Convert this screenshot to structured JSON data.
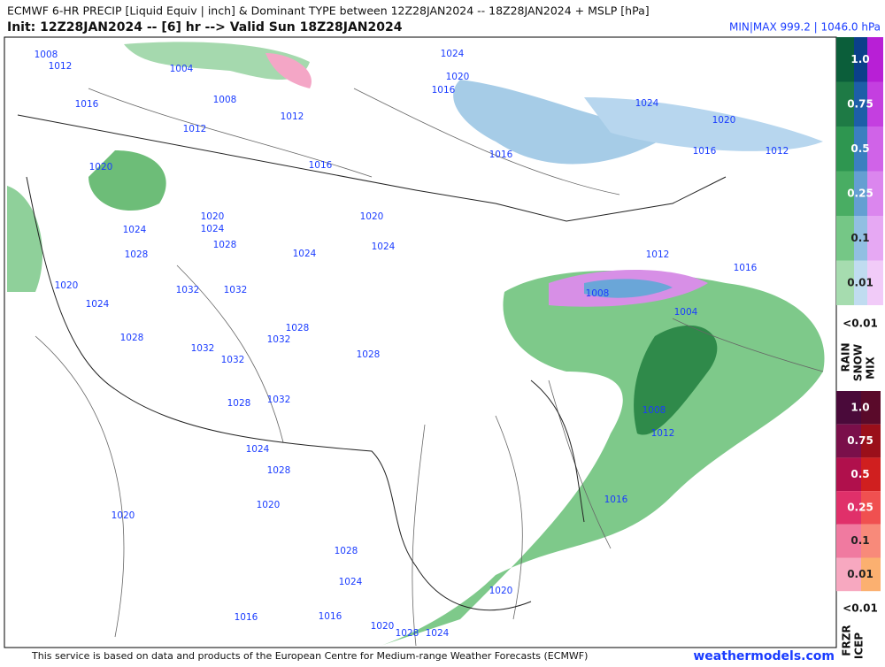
{
  "header": {
    "title": "ECMWF 6-HR PRECIP [Liquid Equiv | inch] & Dominant TYPE between 12Z28JAN2024 -- 18Z28JAN2024 + MSLP [hPa]",
    "subtitle": "Init: 12Z28JAN2024 -- [6] hr --> Valid Sun 18Z28JAN2024",
    "minmax": "MIN|MAX 999.2 | 1046.0 hPa"
  },
  "map": {
    "isobar_labels": [
      "1008",
      "1012",
      "1004",
      "1024",
      "1020",
      "1016",
      "1008",
      "1016",
      "1012",
      "1012",
      "1024",
      "1020",
      "1016",
      "1016",
      "1016",
      "1012",
      "1020",
      "1020",
      "1020",
      "1024",
      "1024",
      "1028",
      "1024",
      "1024",
      "1028",
      "1012",
      "1016",
      "1020",
      "1032",
      "1032",
      "1008",
      "1024",
      "1004",
      "1028",
      "1032",
      "1028",
      "1032",
      "1028",
      "1032",
      "1032",
      "1028",
      "1008",
      "1012",
      "1024",
      "1028",
      "1020",
      "1016",
      "1020",
      "1028",
      "1024",
      "1020",
      "1016",
      "1016",
      "1020",
      "1028",
      "1024"
    ]
  },
  "legend_rain_snow": {
    "levels": [
      "1.0",
      "0.75",
      "0.5",
      "0.25",
      "0.1",
      "0.01"
    ],
    "below": "<0.01",
    "types": [
      "RAIN",
      "SNOW",
      "MIX"
    ]
  },
  "legend_frz_ice": {
    "levels": [
      "1.0",
      "0.75",
      "0.5",
      "0.25",
      "0.1",
      "0.01"
    ],
    "below": "<0.01",
    "types": [
      "FRZR",
      "ICEP"
    ]
  },
  "footer": {
    "credit": "This service is based on data and products of the European Centre for Medium-range Weather Forecasts (ECMWF)",
    "site": "weathermodels.com"
  }
}
